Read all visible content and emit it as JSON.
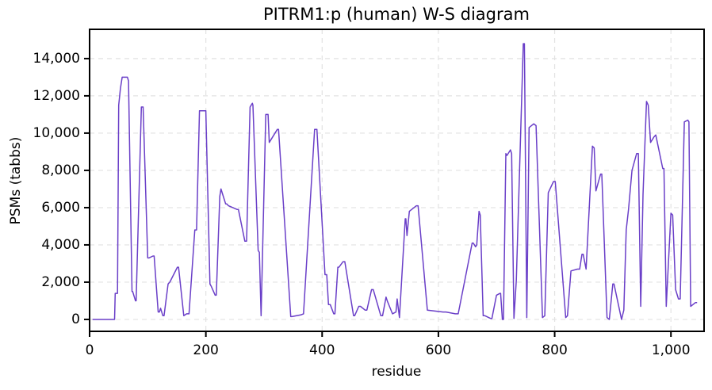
{
  "chart_data": {
    "type": "line",
    "title": "PITRM1:p (human) W-S diagram",
    "xlabel": "residue",
    "ylabel": "PSMs (tabbs)",
    "xlim": [
      0,
      1057
    ],
    "ylim": [
      -640,
      15570
    ],
    "xticks": [
      0,
      200,
      400,
      600,
      800,
      {
        "value": 1000,
        "label": "1,000"
      }
    ],
    "yticks": [
      0,
      {
        "value": 2000,
        "label": "2,000"
      },
      {
        "value": 4000,
        "label": "4,000"
      },
      {
        "value": 6000,
        "label": "6,000"
      },
      {
        "value": 8000,
        "label": "8,000"
      },
      {
        "value": 10000,
        "label": "10,000"
      },
      {
        "value": 12000,
        "label": "12,000"
      },
      {
        "value": 14000,
        "label": "14,000"
      }
    ],
    "grid": true,
    "x": [
      5,
      43,
      44,
      48,
      50,
      53,
      56,
      65,
      67,
      73,
      74,
      79,
      80,
      89,
      92,
      100,
      102,
      109,
      111,
      118,
      120,
      122,
      126,
      128,
      135,
      138,
      151,
      153,
      162,
      167,
      171,
      181,
      184,
      189,
      198,
      200,
      207,
      209,
      216,
      218,
      224,
      226,
      234,
      236,
      239,
      254,
      256,
      267,
      270,
      276,
      280,
      281,
      290,
      292,
      295,
      303,
      307,
      309,
      323,
      325,
      346,
      348,
      364,
      368,
      387,
      391,
      405,
      408,
      411,
      414,
      420,
      422,
      427,
      429,
      436,
      439,
      454,
      456,
      463,
      466,
      474,
      477,
      485,
      488,
      501,
      504,
      510,
      512,
      521,
      527,
      529,
      533,
      543,
      544,
      546,
      550,
      562,
      565,
      581,
      608,
      613,
      629,
      634,
      658,
      660,
      664,
      666,
      670,
      672,
      677,
      680,
      690,
      692,
      700,
      706,
      707,
      710,
      712,
      716,
      718,
      724,
      726,
      730,
      734,
      746,
      748,
      752,
      756,
      764,
      768,
      779,
      783,
      789,
      798,
      801,
      819,
      822,
      828,
      839,
      843,
      847,
      849,
      854,
      865,
      868,
      871,
      879,
      881,
      890,
      894,
      900,
      902,
      915,
      919,
      923,
      927,
      933,
      941,
      944,
      948,
      952,
      958,
      961,
      965,
      971,
      974,
      986,
      988,
      992,
      1000,
      1003,
      1008,
      1013,
      1016,
      1023,
      1029,
      1031,
      1034,
      1042,
      1045
    ],
    "series": [
      {
        "name": "PSMs",
        "color": "#6a3fc8",
        "values": [
          0,
          0,
          1400,
          1400,
          11500,
          12400,
          13000,
          13000,
          12800,
          1500,
          1500,
          1000,
          1000,
          11400,
          11400,
          3300,
          3300,
          3400,
          3400,
          400,
          400,
          600,
          200,
          200,
          1900,
          2000,
          2800,
          2800,
          200,
          300,
          300,
          4800,
          4800,
          11200,
          11200,
          11200,
          1900,
          1800,
          1300,
          1300,
          6600,
          7000,
          6200,
          6200,
          6100,
          5900,
          5900,
          4200,
          4200,
          11400,
          11600,
          11500,
          3700,
          3600,
          200,
          11000,
          11000,
          9500,
          10200,
          10200,
          150,
          150,
          250,
          300,
          10200,
          10200,
          2400,
          2400,
          800,
          800,
          300,
          300,
          2800,
          2800,
          3100,
          3100,
          200,
          200,
          700,
          700,
          500,
          500,
          1600,
          1600,
          200,
          200,
          1200,
          1000,
          300,
          400,
          1100,
          100,
          5400,
          5400,
          4500,
          5800,
          6100,
          6100,
          500,
          400,
          400,
          300,
          300,
          4100,
          4100,
          3900,
          4000,
          5800,
          5600,
          200,
          200,
          50,
          50,
          1300,
          1400,
          1400,
          0,
          0,
          8900,
          8800,
          9100,
          8900,
          50,
          2100,
          14800,
          14800,
          100,
          10300,
          10500,
          10400,
          100,
          200,
          6800,
          7400,
          7400,
          100,
          200,
          2600,
          2700,
          2700,
          3500,
          3500,
          2700,
          9300,
          9200,
          6900,
          7800,
          7800,
          100,
          0,
          1900,
          1900,
          0,
          500,
          4800,
          5900,
          8000,
          8900,
          8900,
          700,
          6700,
          11700,
          11500,
          9500,
          9800,
          9900,
          8100,
          8100,
          700,
          5700,
          5600,
          1600,
          1100,
          1100,
          10600,
          10700,
          10600,
          700,
          900,
          900
        ]
      }
    ]
  }
}
